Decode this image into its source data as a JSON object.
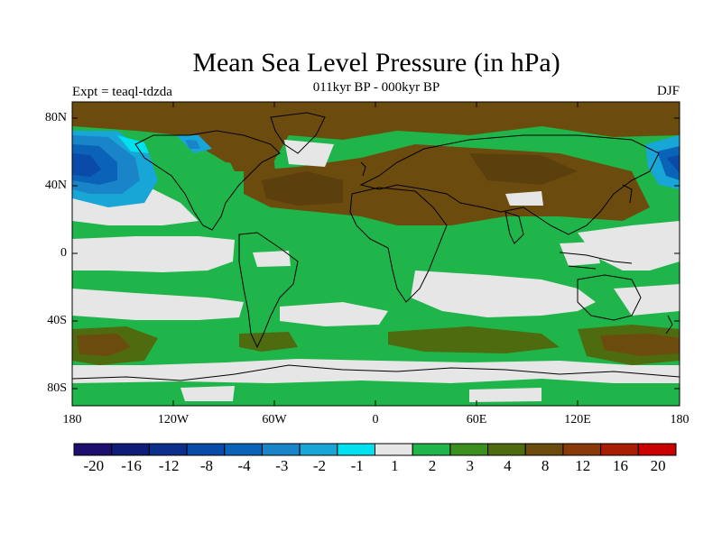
{
  "title": "Mean Sea Level Pressure (in hPa)",
  "subtitle": "011kyr BP - 000kyr BP",
  "experiment": "Expt = teaql-tdzda",
  "season": "DJF",
  "map": {
    "projection": "cylindrical equidistant",
    "lon_range": [
      -180,
      180
    ],
    "lat_range": [
      -90,
      90
    ],
    "y_ticks": [
      "80N",
      "40N",
      "0",
      "40S",
      "80S"
    ],
    "x_ticks": [
      "180",
      "120W",
      "60W",
      "0",
      "60E",
      "120E",
      "180"
    ]
  },
  "colorbar": {
    "labels": [
      "-20",
      "-16",
      "-12",
      "-8",
      "-4",
      "-3",
      "-2",
      "-1",
      "1",
      "2",
      "3",
      "4",
      "8",
      "12",
      "16",
      "20"
    ],
    "colors": [
      "#1e0f6e",
      "#0f1c78",
      "#0d2f8c",
      "#0a4aa8",
      "#0b63b8",
      "#1a84c9",
      "#18a6d6",
      "#00e0ee",
      "#e6e6e6",
      "#1fb54a",
      "#3a8f1f",
      "#4f6b10",
      "#6b4c0e",
      "#8a3a08",
      "#a81e05",
      "#c80000"
    ]
  },
  "legend_pattern": {
    "land_anomaly": "brown (+4 to +8)",
    "north_pacific": "blue (-4 to -8)",
    "tropical_bands": "green (+1 to +2)"
  }
}
